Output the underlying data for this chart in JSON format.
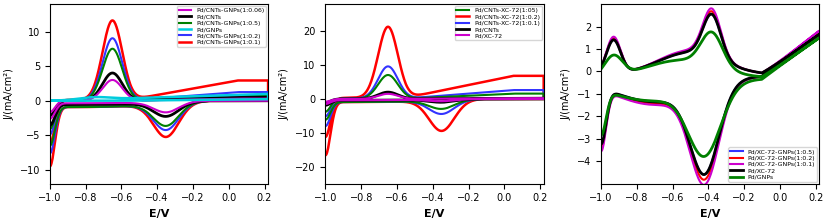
{
  "panel1": {
    "xlabel": "E/V",
    "ylabel": "J/(mA/cm²)",
    "xlim": [
      -1.0,
      0.22
    ],
    "ylim": [
      -12,
      14
    ],
    "yticks": [
      -10,
      -5,
      0,
      5,
      10
    ],
    "xticks": [
      -1.0,
      -0.8,
      -0.6,
      -0.4,
      -0.2,
      0.0,
      0.2
    ],
    "legend": [
      {
        "label": "Pd/CNTs-GNPs(1:0.5)",
        "color": "#008000"
      },
      {
        "label": "Pd/CNTs-GNPs(1:0.2)",
        "color": "#3333FF"
      },
      {
        "label": "Pd/CNTs-GNPs(1:0.1)",
        "color": "#FF0000"
      },
      {
        "label": "Pd/CNTs-GNPs(1:0.06)",
        "color": "#CC00CC"
      },
      {
        "label": "Pd/CNTs",
        "color": "#000000"
      },
      {
        "label": "Pd/GNPs",
        "color": "#00CCDD"
      }
    ],
    "curves": [
      {
        "anodic_peak": 11.5,
        "cathodic_peak": -4.8,
        "scale": 1.0,
        "flat_upper": 2.8,
        "flat_lower": -0.5,
        "color": "#FF0000",
        "lw": 1.8
      },
      {
        "anodic_peak": 9.0,
        "cathodic_peak": -3.8,
        "scale": 0.8,
        "flat_upper": 1.2,
        "flat_lower": -0.5,
        "color": "#3333FF",
        "lw": 1.5
      },
      {
        "anodic_peak": 7.5,
        "cathodic_peak": -3.2,
        "scale": 0.7,
        "flat_upper": 0.8,
        "flat_lower": -0.5,
        "color": "#008000",
        "lw": 1.5
      },
      {
        "anodic_peak": 4.0,
        "cathodic_peak": -2.0,
        "scale": 0.4,
        "flat_upper": 0.5,
        "flat_lower": -0.3,
        "color": "#000000",
        "lw": 2.0
      },
      {
        "anodic_peak": 3.0,
        "cathodic_peak": -1.5,
        "scale": 0.3,
        "flat_upper": 0.3,
        "flat_lower": -0.2,
        "color": "#CC00CC",
        "lw": 1.5
      },
      {
        "anodic_peak": 1.0,
        "cathodic_peak": -0.3,
        "scale": 0.1,
        "flat_upper": 1.2,
        "flat_lower": 0.2,
        "color": "#00CCDD",
        "lw": 1.8
      }
    ]
  },
  "panel2": {
    "xlabel": "E/V",
    "ylabel": "J/(mA/cm²)",
    "xlim": [
      -1.0,
      0.22
    ],
    "ylim": [
      -25,
      28
    ],
    "yticks": [
      -20,
      -10,
      0,
      10,
      20
    ],
    "xticks": [
      -1.0,
      -0.8,
      -0.6,
      -0.4,
      -0.2,
      0.0,
      0.2
    ],
    "legend": [
      {
        "label": "Pd/CNTs-XC-72(1:05)",
        "color": "#008000"
      },
      {
        "label": "Pd/CNTs-XC-72(1:0.2)",
        "color": "#FF0000"
      },
      {
        "label": "Pd/CNTs-XC-72(1:0.1)",
        "color": "#3333FF"
      },
      {
        "label": "Pd/CNTs",
        "color": "#000000"
      },
      {
        "label": "Pd/XC-72",
        "color": "#CC00CC"
      }
    ],
    "curves": [
      {
        "anodic_peak": 21.0,
        "cathodic_peak": -9.0,
        "scale": 1.0,
        "flat_upper": 6.5,
        "flat_lower": -0.5,
        "color": "#FF0000",
        "lw": 1.8
      },
      {
        "anodic_peak": 9.5,
        "cathodic_peak": -4.0,
        "scale": 0.5,
        "flat_upper": 2.5,
        "flat_lower": -0.5,
        "color": "#3333FF",
        "lw": 1.5
      },
      {
        "anodic_peak": 7.0,
        "cathodic_peak": -2.5,
        "scale": 0.4,
        "flat_upper": 1.5,
        "flat_lower": -0.5,
        "color": "#008000",
        "lw": 1.5
      },
      {
        "anodic_peak": 2.0,
        "cathodic_peak": -0.8,
        "scale": 0.2,
        "flat_upper": 0.2,
        "flat_lower": -0.2,
        "color": "#000000",
        "lw": 2.0
      },
      {
        "anodic_peak": 1.5,
        "cathodic_peak": -0.5,
        "scale": 0.15,
        "flat_upper": 0.2,
        "flat_lower": -0.2,
        "color": "#CC00CC",
        "lw": 1.5
      }
    ]
  },
  "panel3": {
    "xlabel": "E/V",
    "ylabel": "J/(mA/cm²)",
    "xlim": [
      -1.0,
      0.22
    ],
    "ylim": [
      -5,
      3
    ],
    "yticks": [
      -4,
      -3,
      -2,
      -1,
      0,
      1,
      2
    ],
    "xticks": [
      -1.0,
      -0.8,
      -0.6,
      -0.4,
      -0.2,
      0.0,
      0.2
    ],
    "legend": [
      {
        "label": "Pd/XC-72-GNPs(1:0.5)",
        "color": "#3333FF"
      },
      {
        "label": "Pd/XC-72-GNPs(1:0.2)",
        "color": "#FF0000"
      },
      {
        "label": "Pd/XC-72-GNPs(1:0.1)",
        "color": "#CC00CC"
      },
      {
        "label": "Pd/XC-72",
        "color": "#000000"
      },
      {
        "label": "Pd/GNPs",
        "color": "#008000"
      }
    ]
  }
}
